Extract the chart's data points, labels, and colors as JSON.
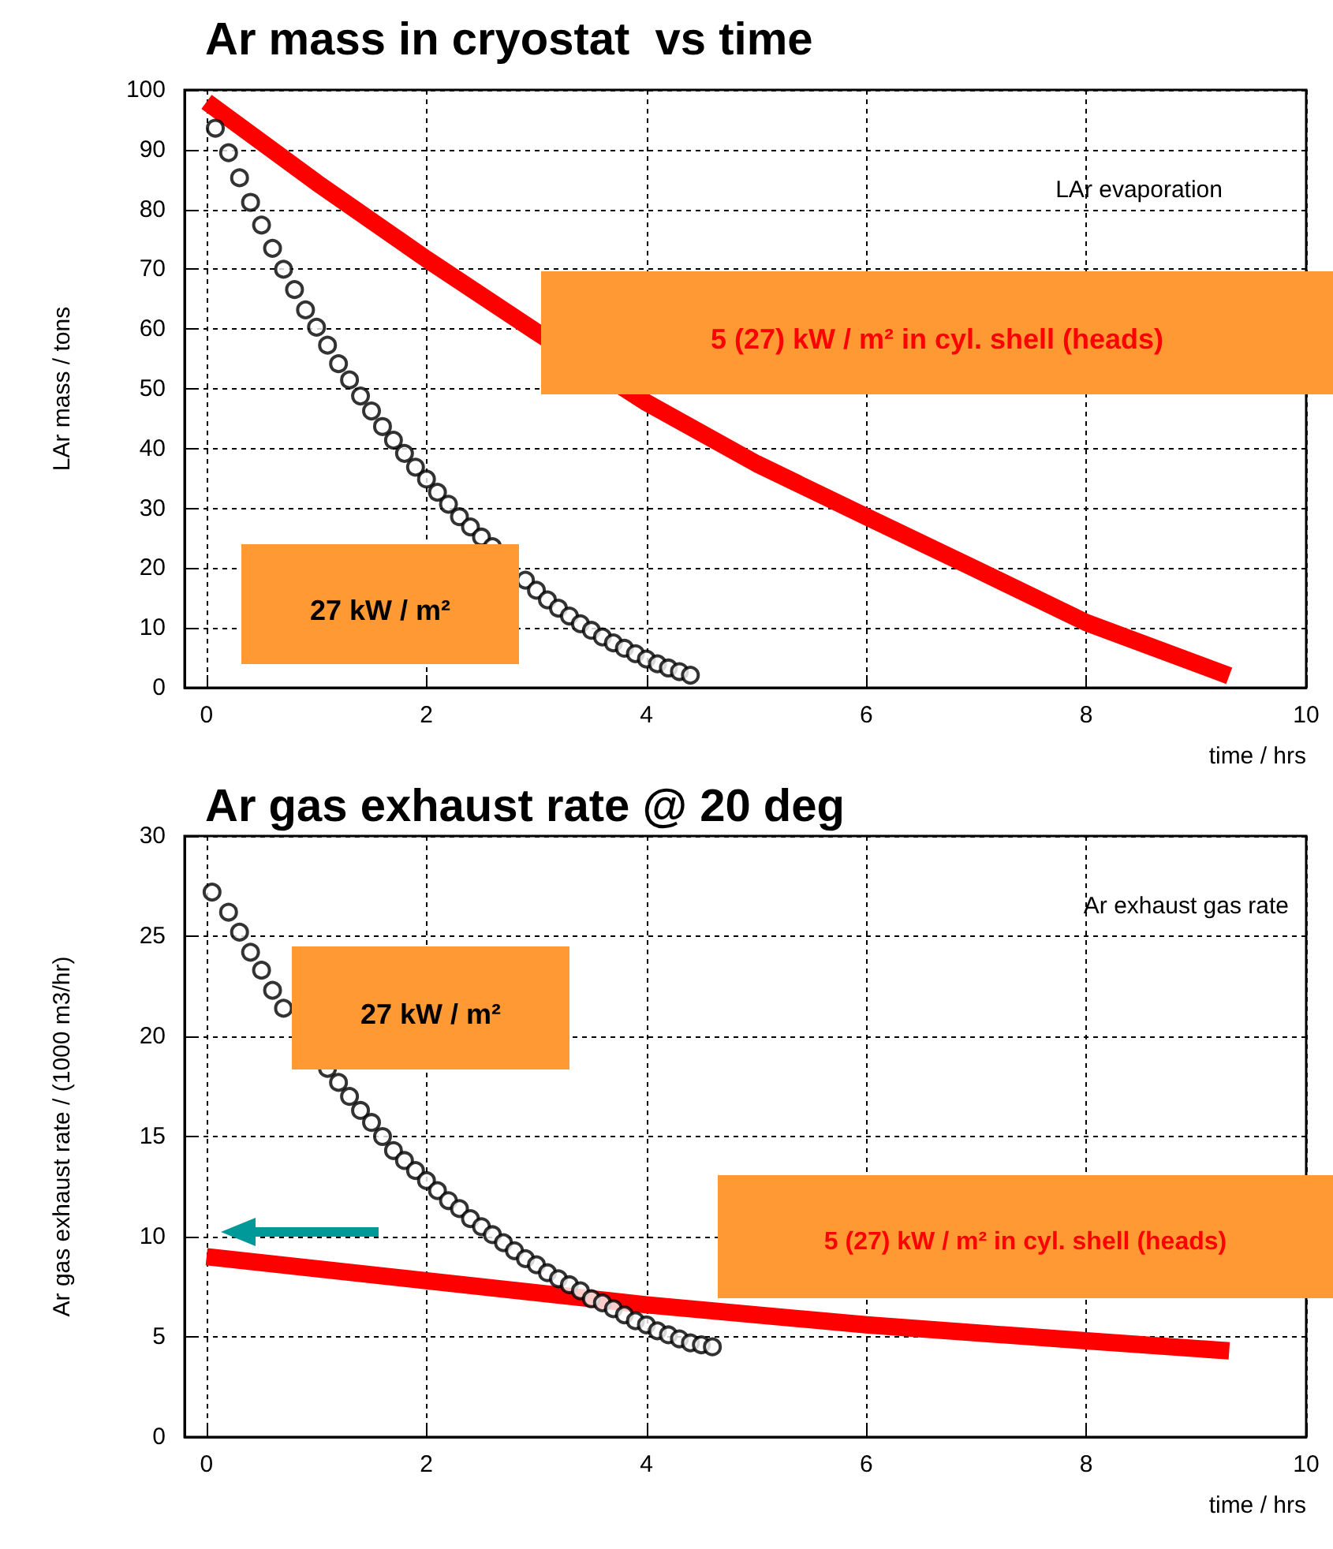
{
  "chart_data": [
    {
      "type": "scatter",
      "title": "Ar mass in cryostat  vs time",
      "xlabel": "time / hrs",
      "ylabel": "LAr mass / tons",
      "xlim": [
        -0.2,
        10
      ],
      "xticks": [
        0,
        2,
        4,
        6,
        8,
        10
      ],
      "ylim": [
        0,
        100
      ],
      "yticks": [
        0,
        10,
        20,
        30,
        40,
        50,
        60,
        70,
        80,
        90,
        100
      ],
      "grid": true,
      "annotations": [
        "LAr evaporation",
        "5 (27) kW / m² in cyl. shell (heads)",
        "27 kW / m²"
      ],
      "series": [
        {
          "type": "line",
          "color": "#ff0000",
          "line_style": "solid",
          "marker": "none",
          "x": [
            0,
            1,
            2,
            3,
            4,
            5,
            6,
            7,
            8,
            9.3
          ],
          "values": [
            98,
            84.5,
            71.7,
            59.5,
            47.7,
            37.5,
            28.6,
            19.8,
            10.9,
            2
          ]
        },
        {
          "type": "scatter",
          "color": "#000000",
          "marker": "circle",
          "x": [
            0.08,
            0.2,
            0.3,
            0.4,
            0.5,
            0.6,
            0.7,
            0.8,
            0.9,
            1.0,
            1.1,
            1.2,
            1.3,
            1.4,
            1.5,
            1.6,
            1.7,
            1.8,
            1.9,
            2.0,
            2.1,
            2.2,
            2.3,
            2.4,
            2.5,
            2.6,
            2.7,
            2.8,
            2.9,
            3.0,
            3.1,
            3.2,
            3.3,
            3.4,
            3.5,
            3.6,
            3.7,
            3.8,
            3.9,
            4.0,
            4.1,
            4.2,
            4.3,
            4.4
          ],
          "values": [
            93.6,
            89.5,
            85.3,
            81.2,
            77.4,
            73.5,
            70,
            66.6,
            63.2,
            60.3,
            57.3,
            54.2,
            51.5,
            48.8,
            46.3,
            43.7,
            41.4,
            39.2,
            36.9,
            34.9,
            32.7,
            30.7,
            28.6,
            26.9,
            25.2,
            23.6,
            null,
            null,
            18,
            16.3,
            14.7,
            13.3,
            12,
            10.7,
            9.6,
            8.5,
            7.5,
            6.6,
            5.7,
            4.8,
            4,
            3.3,
            2.7,
            2.1
          ]
        }
      ]
    },
    {
      "type": "scatter",
      "title": "Ar gas exhaust rate @ 20 deg",
      "xlabel": "time / hrs",
      "ylabel": "Ar gas exhaust rate / (1000 m3/hr)",
      "xlim": [
        -0.2,
        10
      ],
      "xticks": [
        0,
        2,
        4,
        6,
        8,
        10
      ],
      "ylim": [
        0,
        30
      ],
      "yticks": [
        0,
        5,
        10,
        15,
        20,
        25,
        30
      ],
      "grid": true,
      "annotations": [
        "Ar exhaust gas rate",
        "27 kW / m²",
        "5 (27) kW / m² in cyl. shell (heads)"
      ],
      "series": [
        {
          "type": "scatter",
          "color": "#000000",
          "marker": "circle",
          "x": [
            0.05,
            0.2,
            0.3,
            0.4,
            0.5,
            0.6,
            0.7,
            0.8,
            0.9,
            1.0,
            1.1,
            1.2,
            1.3,
            1.4,
            1.5,
            1.6,
            1.7,
            1.8,
            1.9,
            2.0,
            2.1,
            2.2,
            2.3,
            2.4,
            2.5,
            2.6,
            2.7,
            2.8,
            2.9,
            3.0,
            3.1,
            3.2,
            3.3,
            3.4,
            3.5,
            3.6,
            3.7,
            3.8,
            3.9,
            4.0,
            4.1,
            4.2,
            4.3,
            4.4,
            4.5,
            4.6
          ],
          "values": [
            27.2,
            26.2,
            25.2,
            24.2,
            23.3,
            22.3,
            21.4,
            null,
            null,
            null,
            18.4,
            17.7,
            17,
            16.3,
            15.7,
            15,
            14.3,
            13.8,
            13.3,
            12.8,
            12.3,
            11.8,
            11.4,
            10.9,
            10.5,
            10.1,
            9.7,
            9.3,
            8.9,
            8.6,
            8.2,
            7.9,
            7.6,
            7.3,
            6.9,
            6.7,
            6.4,
            6.1,
            5.8,
            5.6,
            5.3,
            5.1,
            4.9,
            4.7,
            4.6,
            4.5
          ]
        },
        {
          "type": "line",
          "color": "#ff0000",
          "line_style": "solid",
          "marker": "none",
          "x": [
            0,
            2,
            4,
            6,
            8,
            9.3
          ],
          "values": [
            9,
            7.8,
            6.6,
            5.6,
            4.8,
            4.3
          ]
        }
      ]
    }
  ]
}
